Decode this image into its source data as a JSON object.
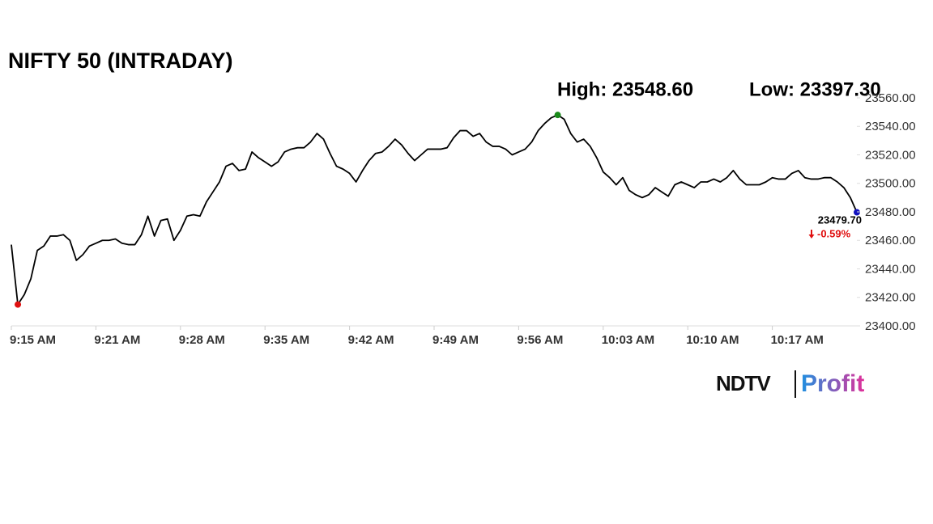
{
  "chart_data": {
    "type": "line",
    "title": "NIFTY 50 (INTRADAY)",
    "high_label": "High: 23548.60",
    "low_label": "Low: 23397.30",
    "last_label": "23479.70",
    "change_label": "-0.59%",
    "brand": [
      "NDTV",
      "Profit"
    ],
    "color": "#000000",
    "high_color": "#1a8a1a",
    "low_color": "#e01010",
    "last_color": "#1010c0",
    "change_color": "#e01010",
    "high_index": 84,
    "low_index": 1,
    "last_index": 130,
    "categories": [
      "9:15 AM",
      null,
      null,
      null,
      null,
      null,
      null,
      null,
      null,
      null,
      null,
      null,
      null,
      "9:21 AM",
      null,
      null,
      null,
      null,
      null,
      null,
      null,
      null,
      null,
      null,
      null,
      null,
      "9:28 AM",
      null,
      null,
      null,
      null,
      null,
      null,
      null,
      null,
      null,
      null,
      null,
      null,
      "9:35 AM",
      null,
      null,
      null,
      null,
      null,
      null,
      null,
      null,
      null,
      null,
      null,
      null,
      "9:42 AM",
      null,
      null,
      null,
      null,
      null,
      null,
      null,
      null,
      null,
      null,
      null,
      null,
      "9:49 AM",
      null,
      null,
      null,
      null,
      null,
      null,
      null,
      null,
      null,
      null,
      null,
      null,
      "9:56 AM",
      null,
      null,
      null,
      null,
      null,
      null,
      null,
      null,
      null,
      null,
      null,
      null,
      "10:03 AM",
      null,
      null,
      null,
      null,
      null,
      null,
      null,
      null,
      null,
      null,
      null,
      null,
      "10:10 AM",
      null,
      null,
      null,
      null,
      null,
      null,
      null,
      null,
      null,
      null,
      null,
      null,
      "10:17 AM",
      null,
      null,
      null,
      null,
      null,
      null,
      null,
      null,
      null,
      null,
      null,
      null,
      null
    ],
    "values": [
      23457,
      23415,
      23422,
      23433,
      23453,
      23456,
      23463,
      23463,
      23464,
      23460,
      23446,
      23450,
      23456,
      23458,
      23460,
      23460,
      23461,
      23458,
      23457,
      23457,
      23464,
      23477,
      23463,
      23474,
      23475,
      23460,
      23467,
      23477,
      23478,
      23477,
      23487,
      23494,
      23501,
      23512,
      23514,
      23509,
      23510,
      23522,
      23518,
      23515,
      23512,
      23515,
      23522,
      23524,
      23525,
      23525,
      23529,
      23535,
      23531,
      23521,
      23512,
      23510,
      23507,
      23501,
      23509,
      23516,
      23521,
      23522,
      23526,
      23531,
      23527,
      23521,
      23516,
      23520,
      23524,
      23524,
      23524,
      23525,
      23532,
      23537,
      23537,
      23533,
      23535,
      23529,
      23526,
      23526,
      23524,
      23520,
      23522,
      23524,
      23529,
      23537,
      23542,
      23546,
      23548,
      23545,
      23535,
      23529,
      23531,
      23526,
      23518,
      23508,
      23504,
      23499,
      23504,
      23495,
      23492,
      23490,
      23492,
      23497,
      23494,
      23491,
      23499,
      23501,
      23499,
      23497,
      23501,
      23501,
      23503,
      23501,
      23504,
      23509,
      23503,
      23499,
      23499,
      23499,
      23501,
      23504,
      23503,
      23503,
      23507,
      23509,
      23504,
      23503,
      23503,
      23504,
      23504,
      23501,
      23497,
      23490,
      23479.7
    ],
    "ylim": [
      23400,
      23560
    ],
    "yticks": [
      {
        "value": 23400,
        "label": "23400.00"
      },
      {
        "value": 23420,
        "label": "23420.00"
      },
      {
        "value": 23440,
        "label": "23440.00"
      },
      {
        "value": 23460,
        "label": "23460.00"
      },
      {
        "value": 23480,
        "label": "23480.00"
      },
      {
        "value": 23500,
        "label": "23500.00"
      },
      {
        "value": 23520,
        "label": "23520.00"
      },
      {
        "value": 23540,
        "label": "23540.00"
      },
      {
        "value": 23560,
        "label": "23560.00"
      }
    ],
    "grid": false
  }
}
